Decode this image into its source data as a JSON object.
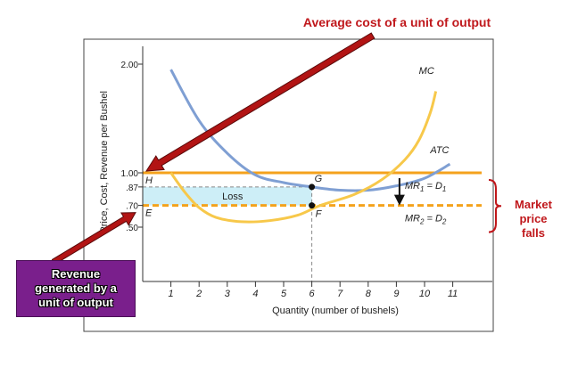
{
  "chart_data": {
    "type": "line",
    "xlabel": "Quantity (number of bushels)",
    "ylabel": "Price, Cost, Revenue per Bushel",
    "xlim": [
      0,
      12
    ],
    "ylim": [
      0,
      2.2
    ],
    "x_ticks": [
      1,
      2,
      3,
      4,
      5,
      6,
      7,
      8,
      9,
      10,
      11
    ],
    "y_ticks": [
      {
        "value": 2.0,
        "label": "2.00"
      },
      {
        "value": 1.0,
        "label": "1.00"
      },
      {
        "value": 0.87,
        "label": ".87"
      },
      {
        "value": 0.7,
        "label": ".70"
      },
      {
        "value": 0.5,
        "label": ".50"
      }
    ],
    "series": [
      {
        "name": "ATC",
        "color": "#7f9fd3",
        "points": [
          [
            1,
            1.95
          ],
          [
            2,
            1.48
          ],
          [
            3,
            1.18
          ],
          [
            4,
            0.98
          ],
          [
            5,
            0.91
          ],
          [
            6,
            0.87
          ],
          [
            7,
            0.84
          ],
          [
            8,
            0.84
          ],
          [
            9,
            0.88
          ],
          [
            10,
            0.95
          ],
          [
            10.9,
            1.08
          ]
        ]
      },
      {
        "name": "MC",
        "color": "#f7c84a",
        "points": [
          [
            1,
            1.0
          ],
          [
            1.5,
            0.82
          ],
          [
            2,
            0.68
          ],
          [
            2.6,
            0.59
          ],
          [
            3.5,
            0.55
          ],
          [
            4.5,
            0.56
          ],
          [
            5.5,
            0.61
          ],
          [
            6.3,
            0.7
          ],
          [
            7.5,
            0.8
          ],
          [
            8.5,
            0.94
          ],
          [
            9.3,
            1.12
          ],
          [
            9.8,
            1.3
          ],
          [
            10.2,
            1.55
          ],
          [
            10.4,
            1.75
          ]
        ]
      },
      {
        "name": "MR1 = D1",
        "color": "#f4a21c",
        "value": 1.0,
        "style": "solid"
      },
      {
        "name": "MR2 = D2",
        "color": "#f4a21c",
        "value": 0.7,
        "style": "dashed"
      }
    ],
    "points": [
      {
        "label": "G",
        "x": 6,
        "y": 0.87
      },
      {
        "label": "F",
        "x": 6,
        "y": 0.7
      }
    ],
    "axis_point_labels": [
      {
        "label": "H",
        "y": 1.0
      },
      {
        "label": "E",
        "y": 0.7
      }
    ],
    "shaded_region": {
      "label": "Loss",
      "x": [
        0,
        6
      ],
      "y": [
        0.7,
        0.87
      ],
      "color": "#cdeef7"
    },
    "curve_labels": {
      "mc": "MC",
      "atc": "ATC"
    },
    "grid": false
  },
  "annotations": {
    "top_callout": "Average cost of a unit of output",
    "market_price_falls": "Market\nprice\nfalls",
    "revenue_box": "Revenue\ngenerated by a\nunit of output",
    "accent_red": "#c0181c",
    "arrow_red": "#b21414"
  }
}
